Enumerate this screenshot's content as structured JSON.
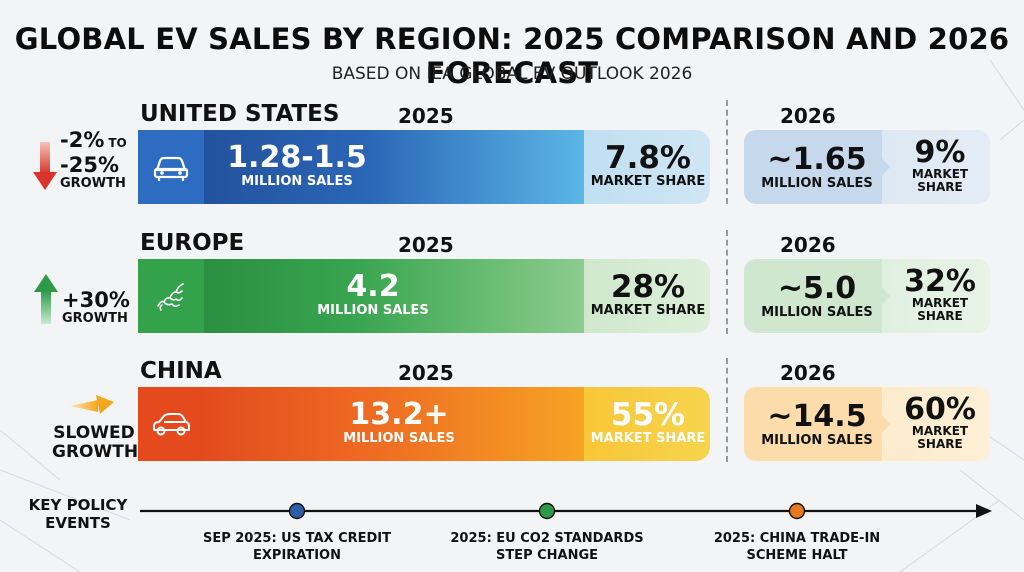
{
  "title": "GLOBAL EV SALES BY REGION: 2025 COMPARISON AND 2026 FORECAST",
  "subtitle": "BASED ON IEA GLOBAL EV OUTLOOK 2026",
  "regions": [
    {
      "name": "UNITED STATES",
      "year_label": "2025",
      "forecast_label": "2026 FORECAST",
      "sales_2025": "1.28-1.5",
      "sales_unit": "MILLION SALES",
      "share_2025": "7.8%",
      "share_label": "MARKET SHARE",
      "forecast_sales": "~1.65",
      "forecast_unit": "MILLION SALES",
      "forecast_share": "9%",
      "forecast_share_label_1": "MARKET",
      "forecast_share_label_2": "SHARE",
      "growth_line1": "-2%",
      "growth_to": "TO",
      "growth_line2": "-25%",
      "growth_line3": "GROWTH",
      "trend_icon": "arrow-down-icon",
      "region_icon": "car-icon",
      "color": "#2f5fa8"
    },
    {
      "name": "EUROPE",
      "year_label": "2025",
      "forecast_label": "2026 FORECAST",
      "sales_2025": "4.2",
      "sales_unit": "MILLION SALES",
      "share_2025": "28%",
      "share_label": "MARKET SHARE",
      "forecast_sales": "~5.0",
      "forecast_unit": "MILLION SALES",
      "forecast_share": "32%",
      "forecast_share_label_1": "MARKET",
      "forecast_share_label_2": "SHARE",
      "growth_line1": "+30%",
      "growth_line2": "GROWTH",
      "trend_icon": "arrow-up-icon",
      "region_icon": "europe-map-icon",
      "color": "#2e9a48"
    },
    {
      "name": "CHINA",
      "year_label": "2025",
      "forecast_label": "2026 FORECAST",
      "sales_2025": "13.2+",
      "sales_unit": "MILLION SALES",
      "share_2025": "55%",
      "share_label": "MARKET SHARE",
      "forecast_sales": "~14.5",
      "forecast_unit": "MILLION SALES",
      "forecast_share": "60%",
      "forecast_share_label_1": "MARKET",
      "forecast_share_label_2": "SHARE",
      "growth_line1": "SLOWED",
      "growth_line2": "GROWTH",
      "trend_icon": "arrow-right-icon",
      "region_icon": "car-icon",
      "color": "#e8501e"
    }
  ],
  "timeline": {
    "title_line1": "KEY POLICY",
    "title_line2": "EVENTS",
    "events": [
      {
        "line1": "SEP 2025: US TAX CREDIT",
        "line2": "EXPIRATION",
        "color": "#2f5fa8"
      },
      {
        "line1": "2025: EU CO2 STANDARDS",
        "line2": "STEP CHANGE",
        "color": "#2e9a48"
      },
      {
        "line1": "2025: CHINA TRADE-IN",
        "line2": "SCHEME HALT",
        "color": "#e8781e"
      }
    ]
  },
  "chart_data": {
    "type": "table",
    "title": "GLOBAL EV SALES BY REGION: 2025 COMPARISON AND 2026 FORECAST",
    "subtitle": "BASED ON IEA GLOBAL EV OUTLOOK 2026",
    "columns": [
      "2025 MILLION SALES",
      "2025 MARKET SHARE",
      "2026 FORECAST MILLION SALES",
      "2026 FORECAST MARKET SHARE"
    ],
    "rows": [
      {
        "region": "UNITED STATES",
        "values": [
          "1.28-1.5",
          "7.8%",
          "~1.65",
          "9%"
        ],
        "growth": "-2% TO -25% GROWTH"
      },
      {
        "region": "EUROPE",
        "values": [
          "4.2",
          "28%",
          "~5.0",
          "32%"
        ],
        "growth": "+30% GROWTH"
      },
      {
        "region": "CHINA",
        "values": [
          "13.2+",
          "55%",
          "~14.5",
          "60%"
        ],
        "growth": "SLOWED GROWTH"
      }
    ]
  }
}
